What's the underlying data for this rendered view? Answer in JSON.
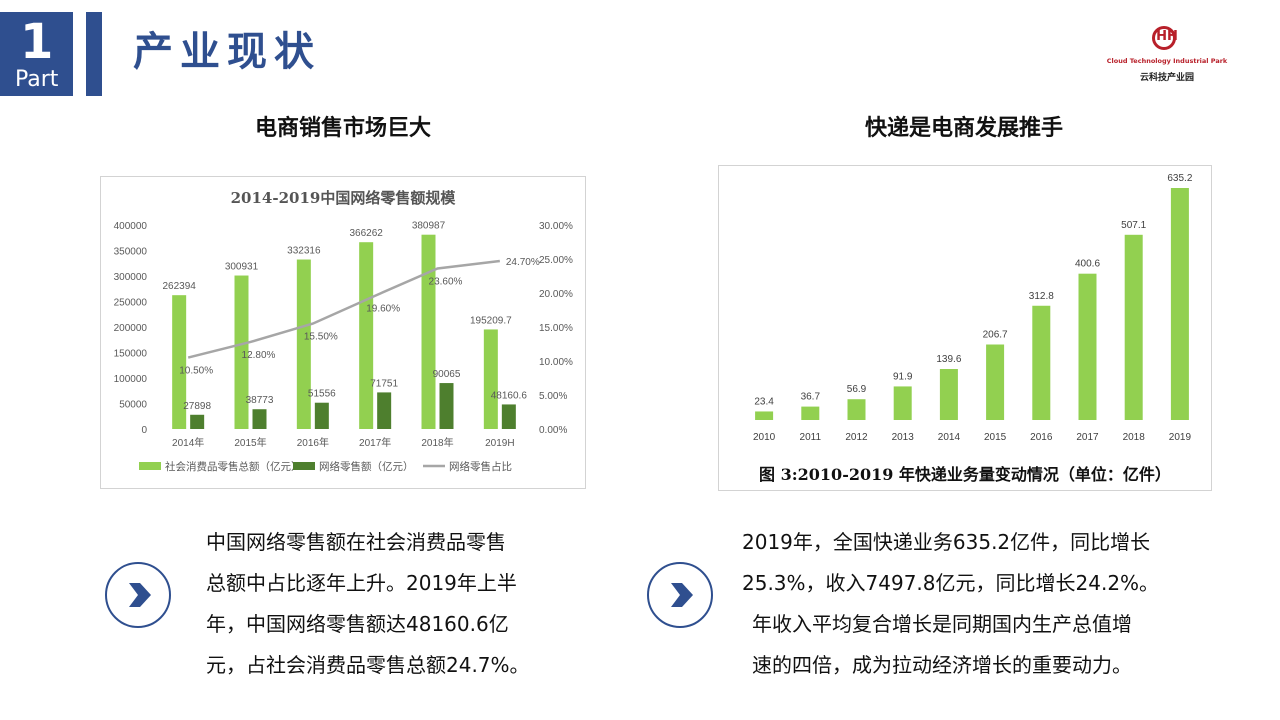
{
  "header": {
    "part_number": "1",
    "part_word": "Part",
    "title": "产业现状",
    "logo_mark": "HH",
    "logo_en": "Cloud Technology Industrial Park",
    "logo_cn": "云科技产业园"
  },
  "left": {
    "section_title": "电商销售市场巨大",
    "description": [
      "中国网络零售额在社会消费品零售",
      "总额中占比逐年上升。2019年上半",
      "年，中国网络零售额达48160.6亿",
      "元，占社会消费品零售总额24.7%。"
    ]
  },
  "right": {
    "section_title": "快递是电商发展推手",
    "description": [
      "2019年，全国快递业务635.2亿件，同比增长",
      "25.3%，收入7497.8亿元，同比增长24.2%。",
      "年收入平均复合增长是同期国内生产总值增",
      "速的四倍，成为拉动经济增长的重要动力。"
    ]
  },
  "colors": {
    "accent": "#2f4f8f",
    "bar_light": "#92d050",
    "bar_dark": "#4e7f2e",
    "line": "#a6a6a6",
    "logo": "#b8202a"
  },
  "chart_data": [
    {
      "type": "bar",
      "title": "2014-2019中国网络零售额规模",
      "categories": [
        "2014年",
        "2015年",
        "2016年",
        "2017年",
        "2018年",
        "2019H"
      ],
      "series": [
        {
          "name": "社会消费品零售总额（亿元）",
          "values": [
            262394,
            300931,
            332316,
            366262,
            380987,
            195209.7
          ],
          "labels": [
            "262394",
            "300931",
            "332316",
            "366262",
            "380987",
            "195209.7"
          ]
        },
        {
          "name": "网络零售额（亿元）",
          "values": [
            27898,
            38773,
            51556,
            71751,
            90065,
            48160.6
          ],
          "labels": [
            "27898",
            "38773",
            "51556",
            "71751",
            "90065",
            "48160.6"
          ]
        },
        {
          "name": "网络零售占比",
          "type": "line",
          "axis": "right",
          "values": [
            10.5,
            12.8,
            15.5,
            19.6,
            23.6,
            24.7
          ],
          "labels": [
            "10.50%",
            "12.80%",
            "15.50%",
            "19.60%",
            "23.60%",
            "24.70%"
          ]
        }
      ],
      "ylim": [
        0,
        400000
      ],
      "yticks": [
        "0",
        "50000",
        "100000",
        "150000",
        "200000",
        "250000",
        "300000",
        "350000",
        "400000"
      ],
      "y2lim": [
        0,
        30
      ],
      "y2ticks": [
        "0.00%",
        "5.00%",
        "10.00%",
        "15.00%",
        "20.00%",
        "25.00%",
        "30.00%"
      ],
      "legend": "bottom",
      "grid": false
    },
    {
      "type": "bar",
      "title": "图 3:2010-2019 年快递业务量变动情况（单位：亿件）",
      "categories": [
        "2010",
        "2011",
        "2012",
        "2013",
        "2014",
        "2015",
        "2016",
        "2017",
        "2018",
        "2019"
      ],
      "values": [
        23.4,
        36.7,
        56.9,
        91.9,
        139.6,
        206.7,
        312.8,
        400.6,
        507.1,
        635.2
      ],
      "labels": [
        "23.4",
        "36.7",
        "56.9",
        "91.9",
        "139.6",
        "206.7",
        "312.8",
        "400.6",
        "507.1",
        "635.2"
      ],
      "ylim": [
        0,
        635.2
      ],
      "grid": false
    }
  ]
}
